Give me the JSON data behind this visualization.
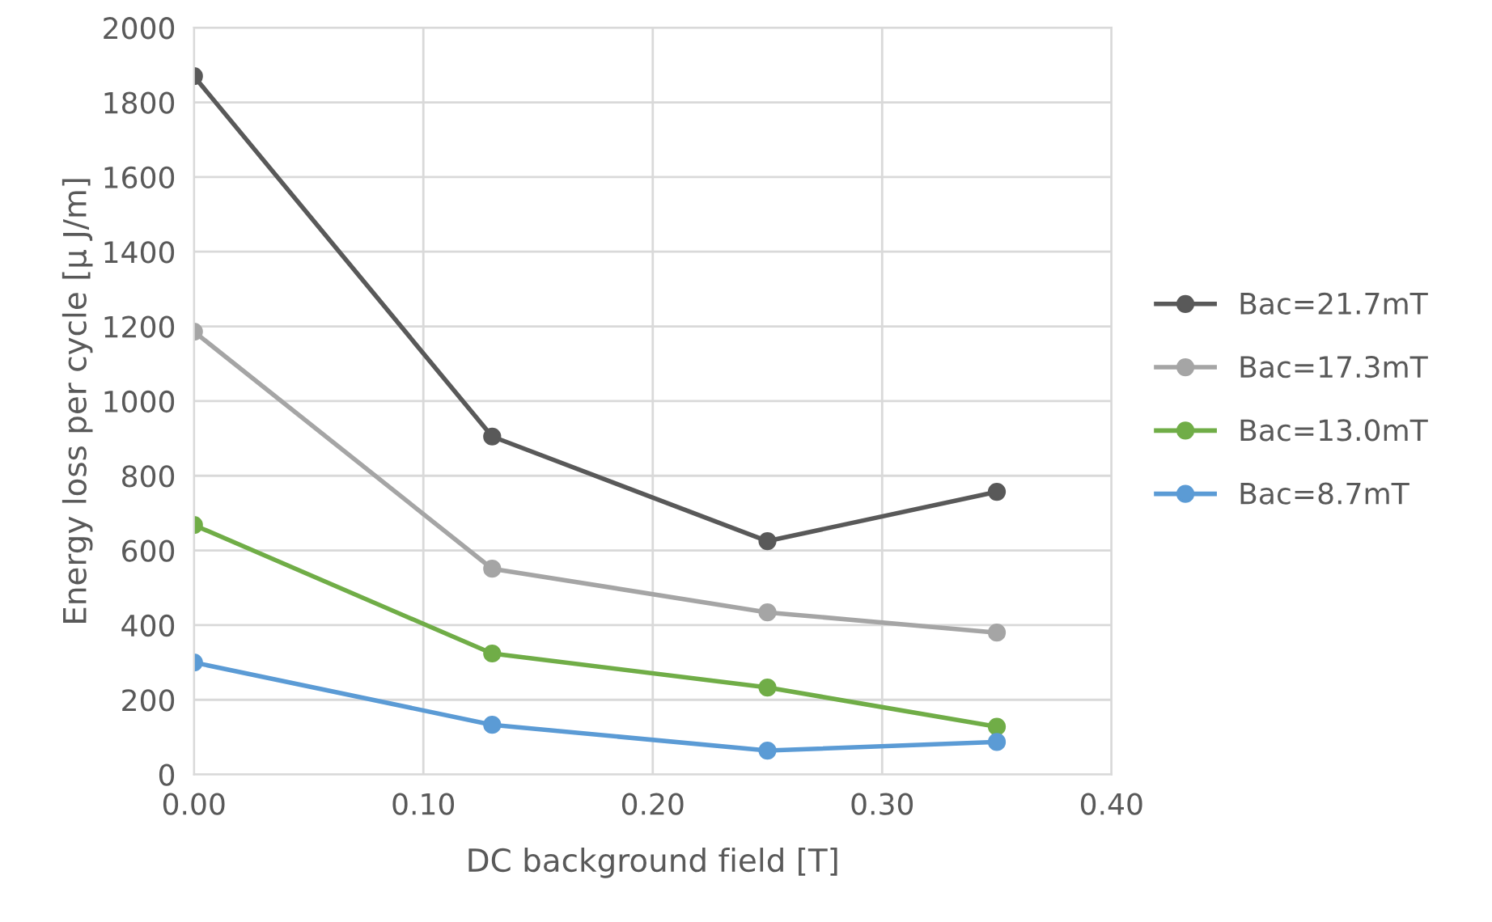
{
  "chart_data": {
    "type": "line",
    "xlabel": "DC background field [T]",
    "ylabel": "Energy loss per cycle [μ J/m]",
    "x": [
      0,
      0.13,
      0.25,
      0.35
    ],
    "series": [
      {
        "name": "Bac=21.7mT",
        "color": "#595959",
        "values": [
          1870,
          905,
          625,
          757
        ]
      },
      {
        "name": "Bac=17.3mT",
        "color": "#a5a5a5",
        "values": [
          1186,
          551,
          434,
          380
        ]
      },
      {
        "name": "Bac=13.0mT",
        "color": "#70ad47",
        "values": [
          668,
          324,
          233,
          128
        ]
      },
      {
        "name": "Bac=8.7mT",
        "color": "#5b9bd5",
        "values": [
          300,
          133,
          64,
          87
        ]
      }
    ],
    "xlim": [
      0,
      0.4
    ],
    "xticks": [
      {
        "value": 0,
        "label": "0.00"
      },
      {
        "value": 0.1,
        "label": "0.10"
      },
      {
        "value": 0.2,
        "label": "0.20"
      },
      {
        "value": 0.3,
        "label": "0.30"
      },
      {
        "value": 0.4,
        "label": "0.40"
      }
    ],
    "ylim": [
      0,
      2000
    ],
    "yticks": [
      0,
      200,
      400,
      600,
      800,
      1000,
      1200,
      1400,
      1600,
      1800,
      2000
    ],
    "grid": true,
    "legend": "right",
    "marker": "circle",
    "line_style": "solid"
  }
}
